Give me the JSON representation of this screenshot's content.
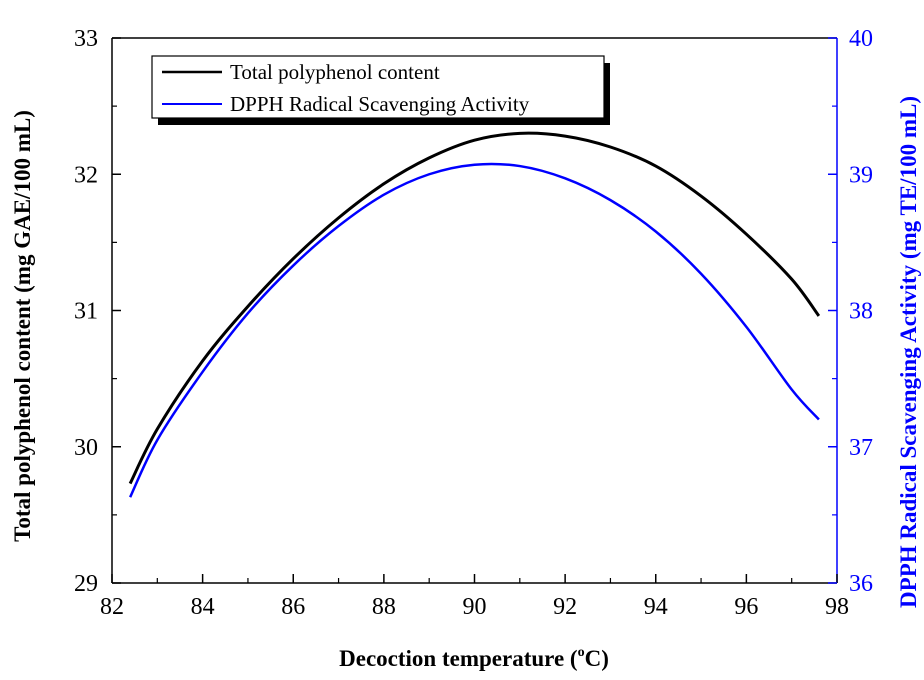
{
  "chart_data": {
    "type": "line",
    "xlabel_main": "Decoction temperature (",
    "xlabel_sup": "o",
    "xlabel_end": "C)",
    "ylabel_left": "Total polyphenol content (mg GAE/100 mL)",
    "ylabel_right": "DPPH Radical Scavenging Activity (mg TE/100 mL)",
    "xlim": [
      82,
      98
    ],
    "ylim_left": [
      29,
      33
    ],
    "ylim_right": [
      36,
      40
    ],
    "x_ticks": [
      "82",
      "84",
      "86",
      "88",
      "90",
      "92",
      "94",
      "96",
      "98"
    ],
    "y_ticks_left": [
      "29",
      "30",
      "31",
      "32",
      "33"
    ],
    "y_ticks_right": [
      "36",
      "37",
      "38",
      "39",
      "40"
    ],
    "legend_position": "top-left",
    "colors": {
      "left_axis": "#000000",
      "right_axis": "#0000ff"
    },
    "series": [
      {
        "name": "Total polyphenol content",
        "axis": "left",
        "color": "#000000",
        "x": [
          82.4,
          83,
          84,
          85,
          86,
          87,
          88,
          89,
          90,
          91,
          92,
          93,
          94,
          95,
          96,
          97,
          97.6
        ],
        "y": [
          29.73,
          30.13,
          30.63,
          31.03,
          31.38,
          31.68,
          31.93,
          32.12,
          32.25,
          32.3,
          32.28,
          32.2,
          32.06,
          31.84,
          31.56,
          31.23,
          30.96
        ]
      },
      {
        "name": "DPPH Radical Scavenging Activity",
        "axis": "right",
        "color": "#0000ff",
        "x": [
          82.4,
          83,
          84,
          85,
          86,
          87,
          88,
          89,
          90,
          91,
          92,
          93,
          94,
          95,
          96,
          97,
          97.6
        ],
        "y": [
          36.63,
          37.05,
          37.55,
          37.98,
          38.33,
          38.62,
          38.85,
          39.0,
          39.07,
          39.06,
          38.97,
          38.81,
          38.58,
          38.27,
          37.88,
          37.42,
          37.2
        ]
      }
    ]
  }
}
